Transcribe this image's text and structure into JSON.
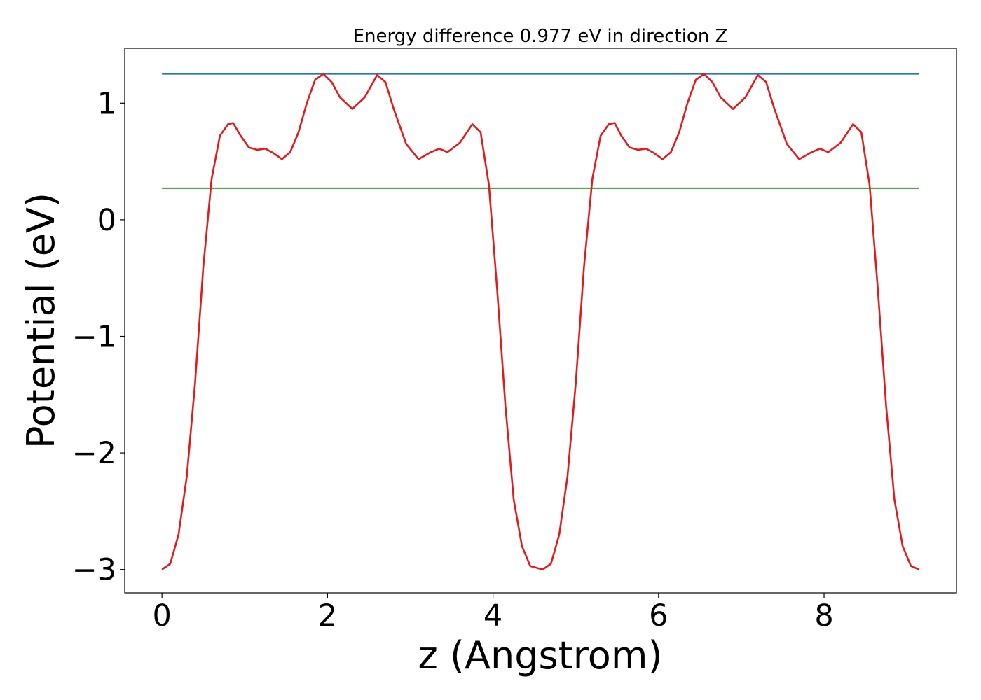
{
  "chart_data": {
    "type": "line",
    "title": "Energy difference 0.977 eV in direction Z",
    "xlabel": "z (Angstrom)",
    "ylabel": "Potential (eV)",
    "xlim": [
      -0.45,
      9.6
    ],
    "ylim": [
      -3.2,
      1.47
    ],
    "xticks": [
      0,
      2,
      4,
      6,
      8
    ],
    "xtick_labels": [
      "0",
      "2",
      "4",
      "6",
      "8"
    ],
    "yticks": [
      -3,
      -2,
      -1,
      0,
      1
    ],
    "ytick_labels": [
      "−3",
      "−2",
      "−1",
      "0",
      "1"
    ],
    "grid": false,
    "legend": "none",
    "hlines": [
      {
        "y": 1.25,
        "x_range": [
          0,
          9.15
        ],
        "color": "#1f77b4"
      },
      {
        "y": 0.27,
        "x_range": [
          0,
          9.15
        ],
        "color": "#2ca02c"
      }
    ],
    "series": [
      {
        "color": "#e31a1c",
        "x": [
          0,
          0.1,
          0.2,
          0.3,
          0.4,
          0.5,
          0.6,
          0.7,
          0.8,
          0.86,
          0.95,
          1.05,
          1.15,
          1.25,
          1.35,
          1.45,
          1.55,
          1.65,
          1.75,
          1.85,
          1.95,
          2.05,
          2.15,
          2.3,
          2.45,
          2.6,
          2.7,
          2.8,
          2.95,
          3.1,
          3.25,
          3.35,
          3.45,
          3.6,
          3.75,
          3.85,
          3.95,
          4.05,
          4.15,
          4.25,
          4.35,
          4.45,
          4.6,
          4.7,
          4.8,
          4.9,
          5.0,
          5.1,
          5.2,
          5.3,
          5.4,
          5.47,
          5.55,
          5.65,
          5.75,
          5.85,
          5.95,
          6.05,
          6.15,
          6.25,
          6.35,
          6.45,
          6.55,
          6.65,
          6.75,
          6.9,
          7.05,
          7.2,
          7.3,
          7.4,
          7.55,
          7.7,
          7.85,
          7.95,
          8.05,
          8.2,
          8.35,
          8.45,
          8.55,
          8.65,
          8.75,
          8.85,
          8.95,
          9.05,
          9.15
        ],
        "y": [
          -3.0,
          -2.95,
          -2.7,
          -2.2,
          -1.4,
          -0.4,
          0.35,
          0.72,
          0.82,
          0.83,
          0.72,
          0.62,
          0.6,
          0.61,
          0.57,
          0.52,
          0.58,
          0.75,
          1.0,
          1.2,
          1.25,
          1.18,
          1.05,
          0.95,
          1.05,
          1.24,
          1.18,
          0.95,
          0.65,
          0.52,
          0.58,
          0.61,
          0.58,
          0.66,
          0.82,
          0.75,
          0.3,
          -0.6,
          -1.6,
          -2.4,
          -2.8,
          -2.97,
          -3.0,
          -2.95,
          -2.7,
          -2.2,
          -1.4,
          -0.4,
          0.35,
          0.72,
          0.82,
          0.83,
          0.72,
          0.62,
          0.6,
          0.61,
          0.57,
          0.52,
          0.58,
          0.75,
          1.0,
          1.2,
          1.25,
          1.18,
          1.05,
          0.95,
          1.05,
          1.24,
          1.18,
          0.95,
          0.65,
          0.52,
          0.58,
          0.61,
          0.58,
          0.66,
          0.82,
          0.75,
          0.3,
          -0.6,
          -1.6,
          -2.4,
          -2.8,
          -2.97,
          -3.0
        ]
      }
    ]
  }
}
